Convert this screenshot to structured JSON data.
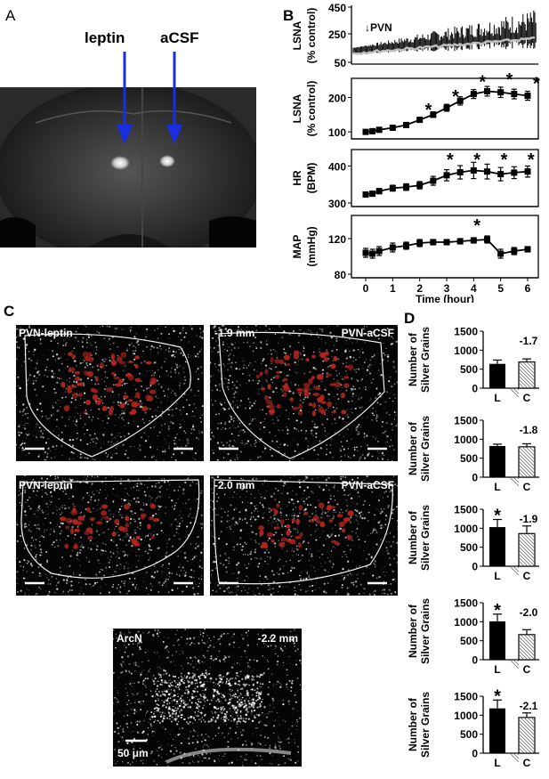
{
  "panels": {
    "a": "A",
    "b": "B",
    "c": "C",
    "d": "D"
  },
  "panel_a": {
    "label_left": "leptin",
    "label_right": "aCSF",
    "arrow_color": "#1a2ee0"
  },
  "panel_b": {
    "x_ticks": [
      "0",
      "1",
      "2",
      "3",
      "4",
      "5",
      "6"
    ],
    "x_label": "Time (hour)",
    "trace": {
      "ylabel_1": "LSNA",
      "ylabel_2": "(% control)",
      "y_ticks": [
        "50",
        "250",
        "450"
      ],
      "marker": "↓PVN"
    },
    "plots": [
      {
        "id": "lsna",
        "ylabel_1": "LSNA",
        "ylabel_2": "(% control)",
        "y_ticks": [
          "100",
          "200"
        ],
        "ylim": [
          90,
          240
        ],
        "x": [
          0,
          0.25,
          0.5,
          1,
          1.5,
          2,
          2.5,
          3,
          3.5,
          4,
          4.5,
          5,
          5.5,
          6
        ],
        "values": [
          100,
          102,
          106,
          112,
          120,
          135,
          150,
          170,
          190,
          210,
          218,
          215,
          210,
          205
        ],
        "errors": [
          5,
          5,
          5,
          6,
          6,
          7,
          8,
          10,
          12,
          13,
          14,
          15,
          14,
          13
        ],
        "stars": [
          2.5,
          3.5,
          4.5,
          5.5,
          6.5
        ]
      },
      {
        "id": "hr",
        "ylabel_1": "HR",
        "ylabel_2": "(BPM)",
        "y_ticks": [
          "300",
          "400"
        ],
        "ylim": [
          300,
          430
        ],
        "x": [
          0,
          0.25,
          0.5,
          1,
          1.5,
          2,
          2.5,
          3,
          3.5,
          4,
          4.5,
          5,
          5.5,
          6
        ],
        "values": [
          323,
          325,
          332,
          340,
          343,
          348,
          360,
          375,
          383,
          388,
          385,
          378,
          382,
          385
        ],
        "errors": [
          6,
          6,
          7,
          8,
          9,
          10,
          12,
          15,
          18,
          22,
          20,
          18,
          16,
          15
        ],
        "stars": [
          3.3,
          4.3,
          5.3,
          6.3
        ]
      },
      {
        "id": "map",
        "ylabel_1": "MAP",
        "ylabel_2": "(mmHg)",
        "y_ticks": [
          "80",
          "120"
        ],
        "ylim": [
          80,
          140
        ],
        "x": [
          0,
          0.25,
          0.5,
          1,
          1.5,
          2,
          2.5,
          3,
          3.5,
          4,
          4.5,
          5,
          5.5,
          6
        ],
        "values": [
          104,
          103,
          106,
          110,
          112,
          115,
          116,
          116,
          117,
          118,
          119,
          103,
          106,
          108
        ],
        "errors": [
          5,
          5,
          5,
          5,
          4,
          4,
          3,
          3,
          3,
          3,
          4,
          5,
          4,
          3
        ],
        "stars": [
          4.3
        ]
      }
    ]
  },
  "panel_c": {
    "images": [
      {
        "tl": "PVN-leptin",
        "tr": ""
      },
      {
        "tl": "-1.9 mm",
        "tr": "PVN-aCSF"
      },
      {
        "tl": "PVN-leptin",
        "tr": ""
      },
      {
        "tl": "-2.0 mm",
        "tr": "PVN-aCSF"
      },
      {
        "tl": "ArcN",
        "tr": "-2.2 mm"
      }
    ],
    "scale_bar": "50 μm"
  },
  "panel_d": {
    "ylabel_1": "Number of",
    "ylabel_2": "Silver Grains",
    "y_ticks": [
      "0",
      "500",
      "1000",
      "1500"
    ],
    "categories": [
      "L",
      "C"
    ],
    "chart_data": [
      {
        "type": "bar",
        "section": "-1.7",
        "categories": [
          "L",
          "C"
        ],
        "values": [
          640,
          690
        ],
        "errors": [
          100,
          80
        ],
        "star": false
      },
      {
        "type": "bar",
        "section": "-1.8",
        "categories": [
          "L",
          "C"
        ],
        "values": [
          820,
          800
        ],
        "errors": [
          50,
          80
        ],
        "star": false
      },
      {
        "type": "bar",
        "section": "-1.9",
        "categories": [
          "L",
          "C"
        ],
        "values": [
          1030,
          860
        ],
        "errors": [
          200,
          200
        ],
        "star": true
      },
      {
        "type": "bar",
        "section": "-2.0",
        "categories": [
          "L",
          "C"
        ],
        "values": [
          1010,
          660
        ],
        "errors": [
          190,
          130
        ],
        "star": true
      },
      {
        "type": "bar",
        "section": "-2.1",
        "categories": [
          "L",
          "C"
        ],
        "values": [
          1180,
          940
        ],
        "errors": [
          220,
          120
        ],
        "star": true
      }
    ]
  },
  "star_glyph": "*"
}
